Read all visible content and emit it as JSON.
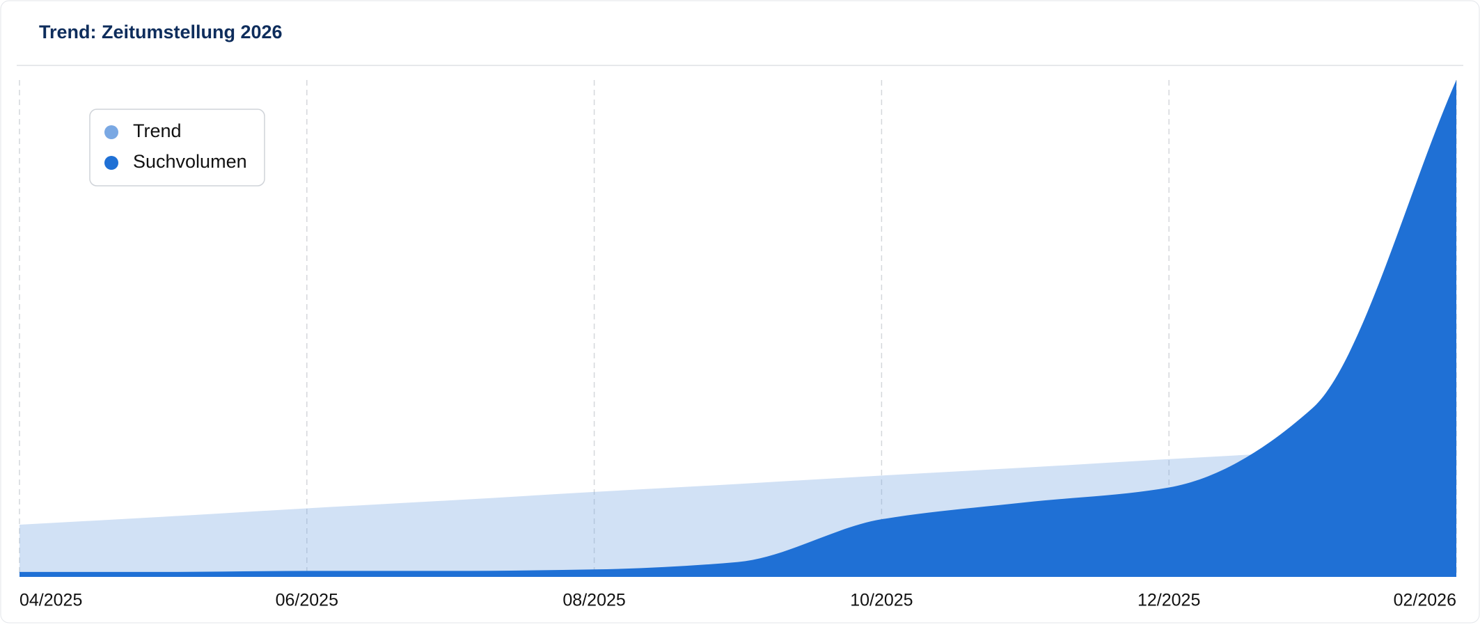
{
  "chart_data": {
    "type": "area",
    "title": "Trend: Zeitumstellung 2026",
    "categories": [
      "04/2025",
      null,
      "06/2025",
      null,
      "08/2025",
      null,
      "10/2025",
      null,
      "12/2025",
      null,
      "02/2026"
    ],
    "series": [
      {
        "name": "Trend",
        "color": "#7aa8e3",
        "values": [
          10.5,
          12.1,
          13.8,
          15.4,
          17.1,
          18.7,
          20.4,
          22.0,
          23.7,
          25.3,
          27.0
        ]
      },
      {
        "name": "Suchvolumen",
        "color": "#1f70d5",
        "values": [
          1,
          1,
          1.2,
          1.2,
          1.5,
          3,
          11.6,
          15,
          18,
          34,
          100
        ]
      }
    ],
    "ylim": [
      0,
      100
    ],
    "legend": "top-left"
  }
}
